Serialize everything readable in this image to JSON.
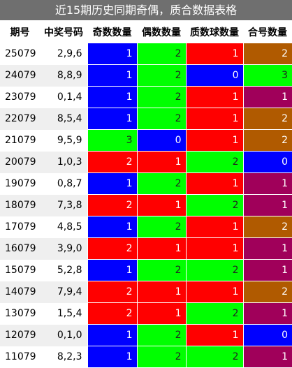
{
  "title": "近15期历史同期奇偶，质合数据表格",
  "headers": [
    "期号",
    "中奖号码",
    "奇数数量",
    "偶数数量",
    "质数球数量",
    "合号数量"
  ],
  "colors": {
    "blue": "#0000ff",
    "green": "#00ff00",
    "red": "#ff0000",
    "brown": "#b05a00",
    "purple": "#a0005a"
  },
  "rows": [
    {
      "issue": "25079",
      "numbers": "2,9,6",
      "odd": "1",
      "even": "2",
      "prime": "1",
      "composite": "2",
      "c": [
        "blue",
        "green",
        "red",
        "brown"
      ]
    },
    {
      "issue": "24079",
      "numbers": "8,8,9",
      "odd": "1",
      "even": "2",
      "prime": "0",
      "composite": "3",
      "c": [
        "blue",
        "green",
        "blue",
        "green"
      ]
    },
    {
      "issue": "23079",
      "numbers": "0,1,4",
      "odd": "1",
      "even": "2",
      "prime": "1",
      "composite": "1",
      "c": [
        "blue",
        "green",
        "red",
        "purple"
      ]
    },
    {
      "issue": "22079",
      "numbers": "8,5,4",
      "odd": "1",
      "even": "2",
      "prime": "1",
      "composite": "2",
      "c": [
        "blue",
        "green",
        "red",
        "brown"
      ]
    },
    {
      "issue": "21079",
      "numbers": "9,5,9",
      "odd": "3",
      "even": "0",
      "prime": "1",
      "composite": "2",
      "c": [
        "green",
        "blue",
        "red",
        "brown"
      ]
    },
    {
      "issue": "20079",
      "numbers": "1,0,3",
      "odd": "2",
      "even": "1",
      "prime": "2",
      "composite": "0",
      "c": [
        "red",
        "red",
        "green",
        "blue"
      ]
    },
    {
      "issue": "19079",
      "numbers": "0,8,7",
      "odd": "1",
      "even": "2",
      "prime": "1",
      "composite": "1",
      "c": [
        "blue",
        "green",
        "red",
        "purple"
      ]
    },
    {
      "issue": "18079",
      "numbers": "7,3,8",
      "odd": "2",
      "even": "1",
      "prime": "2",
      "composite": "1",
      "c": [
        "red",
        "red",
        "green",
        "purple"
      ]
    },
    {
      "issue": "17079",
      "numbers": "4,8,5",
      "odd": "1",
      "even": "2",
      "prime": "1",
      "composite": "2",
      "c": [
        "blue",
        "green",
        "red",
        "brown"
      ]
    },
    {
      "issue": "16079",
      "numbers": "3,9,0",
      "odd": "2",
      "even": "1",
      "prime": "1",
      "composite": "1",
      "c": [
        "red",
        "red",
        "red",
        "purple"
      ]
    },
    {
      "issue": "15079",
      "numbers": "5,2,8",
      "odd": "1",
      "even": "2",
      "prime": "2",
      "composite": "1",
      "c": [
        "blue",
        "green",
        "green",
        "purple"
      ]
    },
    {
      "issue": "14079",
      "numbers": "7,9,4",
      "odd": "2",
      "even": "1",
      "prime": "1",
      "composite": "2",
      "c": [
        "red",
        "red",
        "red",
        "brown"
      ]
    },
    {
      "issue": "13079",
      "numbers": "1,5,4",
      "odd": "2",
      "even": "1",
      "prime": "2",
      "composite": "1",
      "c": [
        "red",
        "red",
        "green",
        "purple"
      ]
    },
    {
      "issue": "12079",
      "numbers": "0,1,0",
      "odd": "1",
      "even": "2",
      "prime": "1",
      "composite": "0",
      "c": [
        "blue",
        "green",
        "red",
        "blue"
      ]
    },
    {
      "issue": "11079",
      "numbers": "8,2,3",
      "odd": "1",
      "even": "2",
      "prime": "2",
      "composite": "1",
      "c": [
        "blue",
        "green",
        "green",
        "purple"
      ]
    }
  ]
}
